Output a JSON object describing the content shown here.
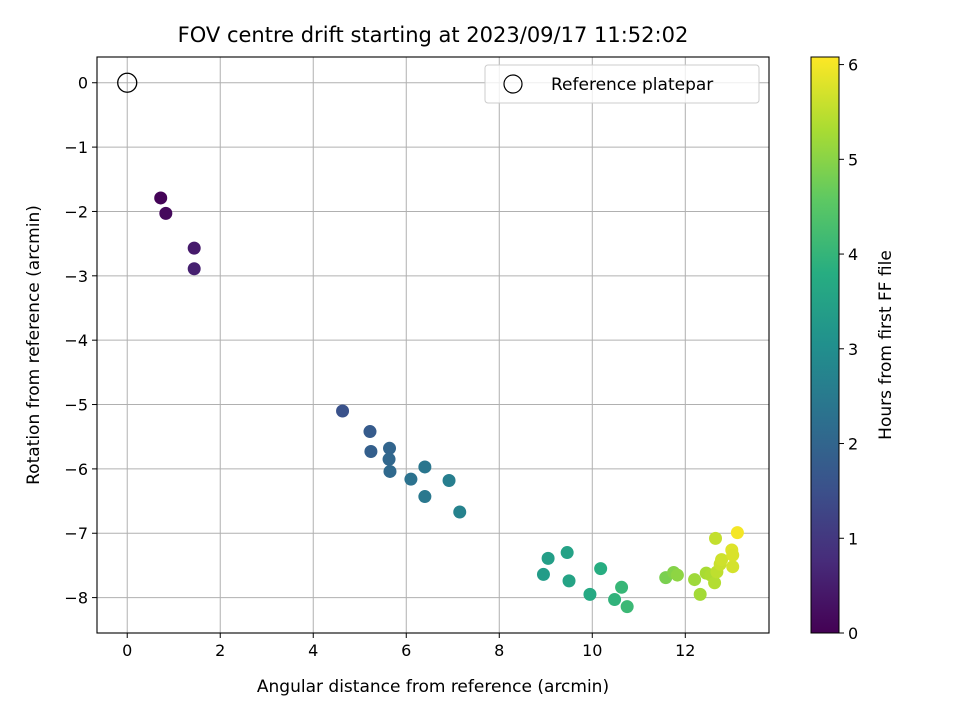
{
  "chart_data": {
    "type": "scatter",
    "title": "FOV centre drift starting at 2023/09/17 11:52:02",
    "xlabel": "Angular distance from reference (arcmin)",
    "ylabel": "Rotation from reference (arcmin)",
    "xlim": [
      -0.65,
      13.8
    ],
    "ylim": [
      -8.55,
      0.4
    ],
    "xticks": [
      0,
      2,
      4,
      6,
      8,
      10,
      12
    ],
    "yticks": [
      0,
      -1,
      -2,
      -3,
      -4,
      -5,
      -6,
      -7,
      -8
    ],
    "xtick_labels": [
      "0",
      "2",
      "4",
      "6",
      "8",
      "10",
      "12"
    ],
    "ytick_labels": [
      "0",
      "−1",
      "−2",
      "−3",
      "−4",
      "−5",
      "−6",
      "−7",
      "−8"
    ],
    "grid": true,
    "legend": {
      "placement": "top-right",
      "entries": [
        "Reference platepar"
      ]
    },
    "reference_point": {
      "name": "Reference platepar",
      "x": 0,
      "y": 0
    },
    "colorbar": {
      "label": "Hours from first FF file",
      "range": [
        0,
        6.08
      ],
      "ticks": [
        0,
        1,
        2,
        3,
        4,
        5,
        6
      ],
      "tick_labels": [
        "0",
        "1",
        "2",
        "3",
        "4",
        "5",
        "6"
      ],
      "colormap": "viridis"
    },
    "points": [
      {
        "x": 0.72,
        "y": -1.79,
        "c": 0.05
      },
      {
        "x": 0.83,
        "y": -2.03,
        "c": 0.15
      },
      {
        "x": 1.44,
        "y": -2.57,
        "c": 0.45
      },
      {
        "x": 1.44,
        "y": -2.89,
        "c": 0.55
      },
      {
        "x": 4.63,
        "y": -5.1,
        "c": 1.55
      },
      {
        "x": 5.22,
        "y": -5.42,
        "c": 1.75
      },
      {
        "x": 5.24,
        "y": -5.73,
        "c": 1.85
      },
      {
        "x": 5.64,
        "y": -5.68,
        "c": 2.0
      },
      {
        "x": 5.63,
        "y": -5.85,
        "c": 2.05
      },
      {
        "x": 5.65,
        "y": -6.04,
        "c": 2.1
      },
      {
        "x": 6.1,
        "y": -6.16,
        "c": 2.3
      },
      {
        "x": 6.4,
        "y": -5.97,
        "c": 2.4
      },
      {
        "x": 6.4,
        "y": -6.43,
        "c": 2.45
      },
      {
        "x": 6.92,
        "y": -6.18,
        "c": 2.6
      },
      {
        "x": 7.15,
        "y": -6.67,
        "c": 2.7
      },
      {
        "x": 8.95,
        "y": -7.64,
        "c": 3.35
      },
      {
        "x": 9.05,
        "y": -7.39,
        "c": 3.4
      },
      {
        "x": 9.46,
        "y": -7.3,
        "c": 3.5
      },
      {
        "x": 9.5,
        "y": -7.74,
        "c": 3.55
      },
      {
        "x": 9.95,
        "y": -7.95,
        "c": 3.7
      },
      {
        "x": 10.18,
        "y": -7.55,
        "c": 3.8
      },
      {
        "x": 10.48,
        "y": -8.03,
        "c": 3.95
      },
      {
        "x": 10.63,
        "y": -7.84,
        "c": 4.05
      },
      {
        "x": 10.75,
        "y": -8.14,
        "c": 4.1
      },
      {
        "x": 11.58,
        "y": -7.69,
        "c": 4.85
      },
      {
        "x": 11.75,
        "y": -7.61,
        "c": 4.95
      },
      {
        "x": 11.83,
        "y": -7.65,
        "c": 5.05
      },
      {
        "x": 12.2,
        "y": -7.72,
        "c": 5.2
      },
      {
        "x": 12.32,
        "y": -7.95,
        "c": 5.25
      },
      {
        "x": 12.45,
        "y": -7.62,
        "c": 5.3
      },
      {
        "x": 12.55,
        "y": -7.65,
        "c": 5.35
      },
      {
        "x": 12.63,
        "y": -7.77,
        "c": 5.4
      },
      {
        "x": 12.65,
        "y": -7.08,
        "c": 5.55
      },
      {
        "x": 12.68,
        "y": -7.6,
        "c": 5.5
      },
      {
        "x": 12.75,
        "y": -7.48,
        "c": 5.6
      },
      {
        "x": 12.78,
        "y": -7.41,
        "c": 5.65
      },
      {
        "x": 13.0,
        "y": -7.26,
        "c": 5.8
      },
      {
        "x": 13.02,
        "y": -7.34,
        "c": 5.75
      },
      {
        "x": 13.02,
        "y": -7.52,
        "c": 5.7
      },
      {
        "x": 13.12,
        "y": -6.99,
        "c": 6.0
      }
    ]
  }
}
